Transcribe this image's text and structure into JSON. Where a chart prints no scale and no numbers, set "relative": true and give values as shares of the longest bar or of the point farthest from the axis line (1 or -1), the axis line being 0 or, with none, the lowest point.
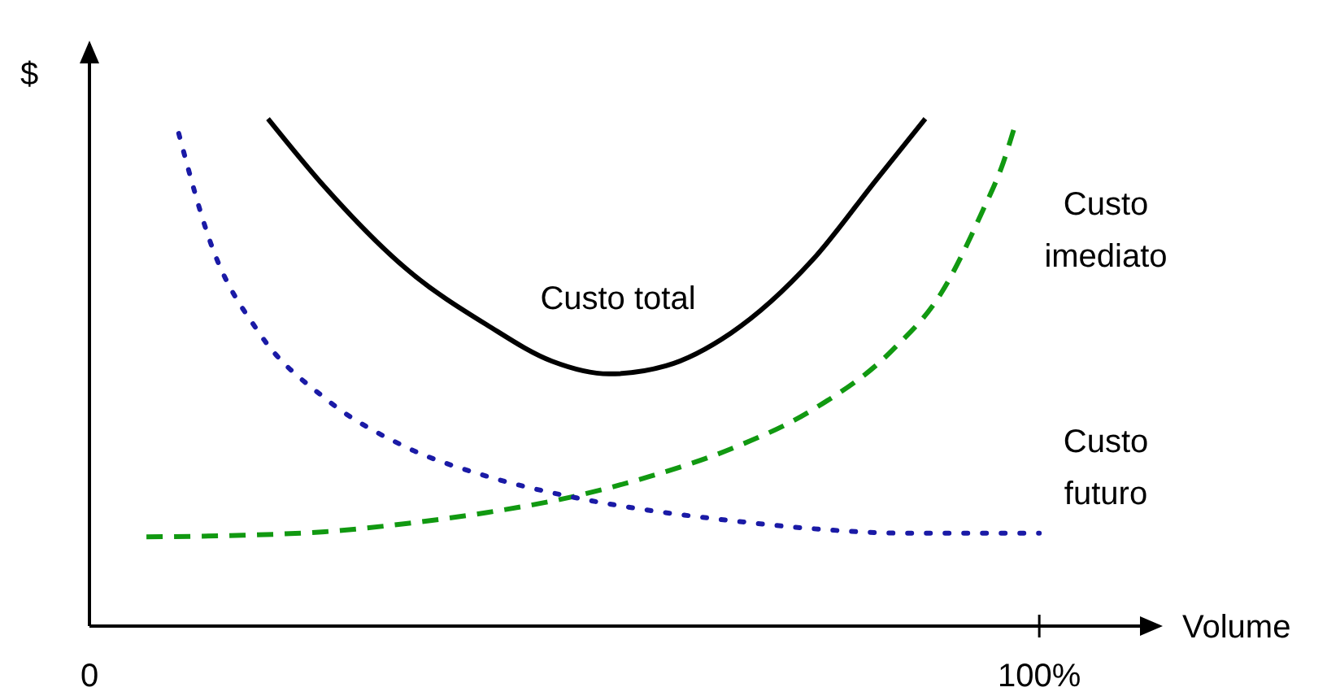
{
  "chart_data": {
    "type": "line",
    "relative": true,
    "xlabel": "Volume",
    "ylabel": "$",
    "xlim": [
      0,
      113
    ],
    "xticks": [
      {
        "value": 0,
        "label": "0"
      },
      {
        "value": 100,
        "label": "100%"
      }
    ],
    "tick_labels": "x",
    "series": [
      {
        "name": "Custo total",
        "color": "#000000",
        "line_style": "solid",
        "x": [
          18.8,
          24.8,
          33.3,
          41.9,
          48.7,
          54.7,
          60.7,
          67.5,
          76.1,
          82.9,
          88.0
        ],
        "values": [
          1.0,
          0.865,
          0.705,
          0.593,
          0.522,
          0.497,
          0.513,
          0.577,
          0.721,
          0.881,
          1.0
        ]
      },
      {
        "name": "Custo imediato",
        "color": "#119911",
        "line_style": "dashed",
        "x": [
          6.0,
          16.2,
          24.8,
          33.3,
          41.9,
          50.4,
          59.0,
          67.5,
          76.1,
          84.6,
          89.7,
          94.0,
          96.2,
          97.4
        ],
        "values": [
          0.176,
          0.179,
          0.186,
          0.202,
          0.224,
          0.253,
          0.295,
          0.349,
          0.426,
          0.545,
          0.657,
          0.817,
          0.913,
          0.984
        ]
      },
      {
        "name": "Custo futuro",
        "color": "#1a1aa6",
        "line_style": "dotted",
        "x": [
          9.4,
          12.8,
          17.9,
          24.8,
          33.3,
          41.9,
          50.4,
          59.0,
          67.5,
          76.1,
          86.3,
          100
        ],
        "values": [
          0.971,
          0.753,
          0.577,
          0.449,
          0.353,
          0.295,
          0.256,
          0.228,
          0.208,
          0.192,
          0.183,
          0.183
        ]
      }
    ]
  }
}
